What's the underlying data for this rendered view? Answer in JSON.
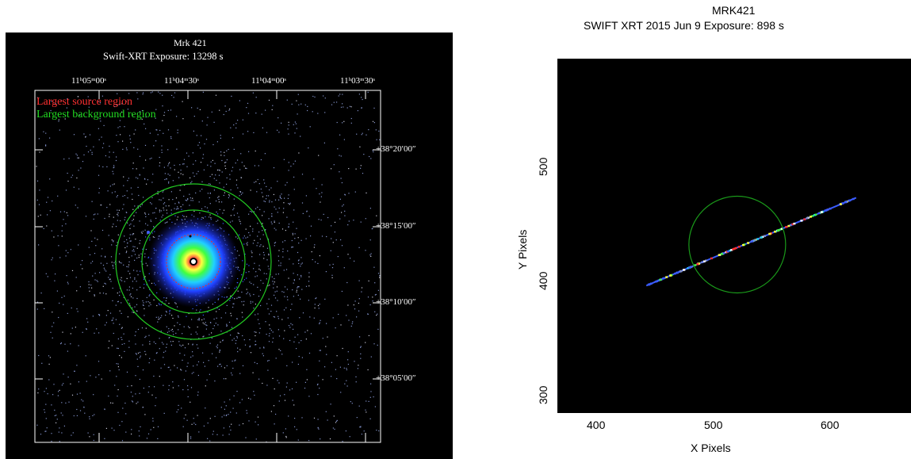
{
  "left_panel": {
    "title_line1": "Mrk 421",
    "title_line2": "Swift-XRT  Exposure: 13298 s",
    "ra_ticks": [
      "11ʰ05ᵐ00ˢ",
      "11ʰ04ᵐ30ˢ",
      "11ʰ04ᵐ00ˢ",
      "11ʰ03ᵐ30ˢ"
    ],
    "dec_ticks": [
      "+38°20′00″",
      "+38°15′00″",
      "+38°10′00″",
      "+38°05′00″"
    ],
    "legend_source": "Largest source region",
    "legend_background": "Largest background region",
    "source_color": "#ff2020",
    "background_color": "#22cc22"
  },
  "right_panel": {
    "title_line1": "MRK421",
    "title_line2": "SWIFT XRT   2015 Jun  9    Exposure: 898 s",
    "xlabel": "X Pixels",
    "ylabel": "Y Pixels",
    "x_ticks": [
      "400",
      "500",
      "600"
    ],
    "y_ticks": [
      "300",
      "400",
      "500"
    ],
    "circle_color": "#1a9a1a"
  }
}
